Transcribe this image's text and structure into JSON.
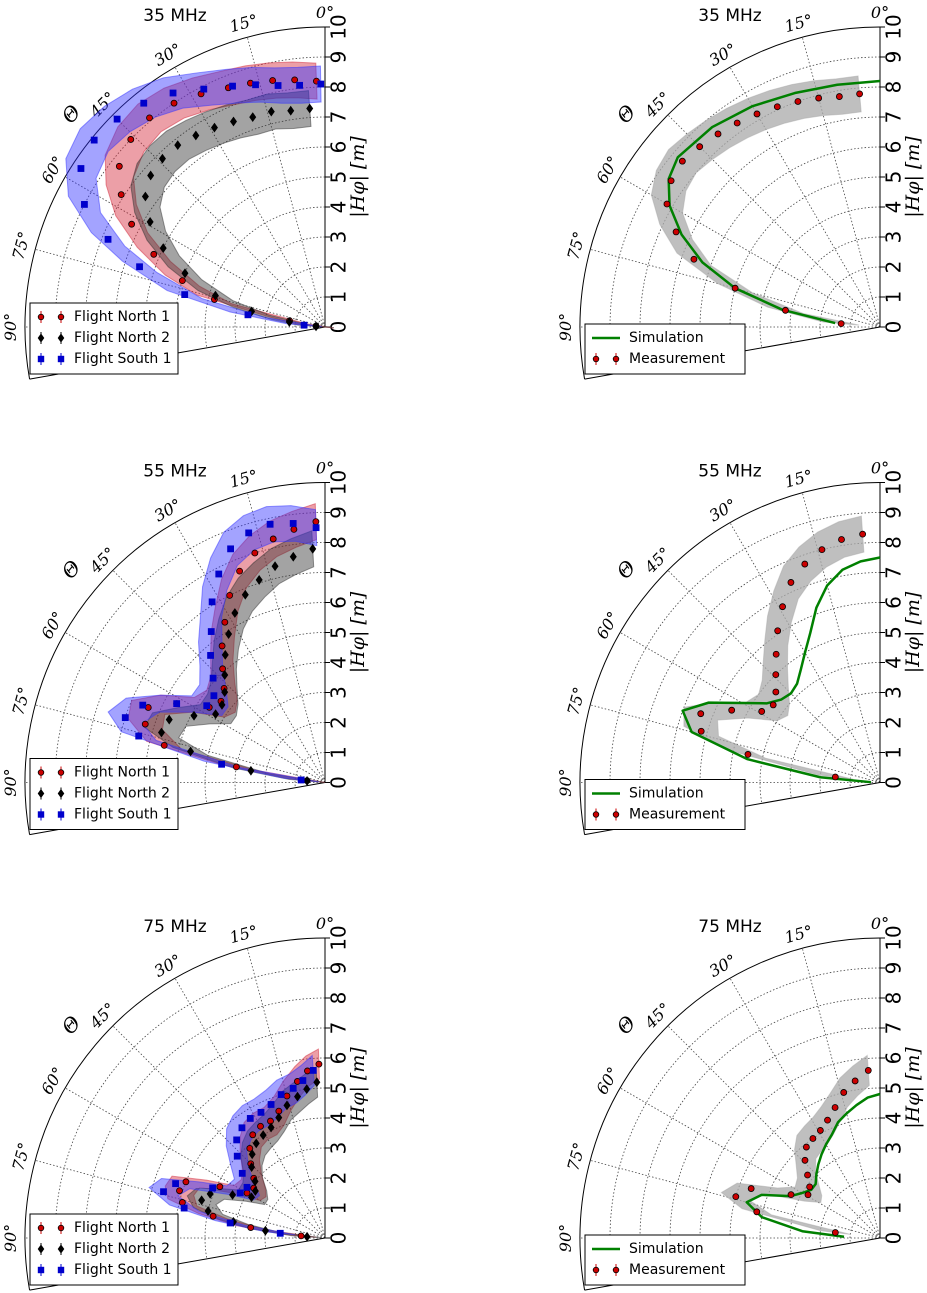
{
  "chart_data": [
    {
      "type": "polar",
      "title": "35 MHz",
      "theta_label": "Θ",
      "r_label": "|Hφ| [m]",
      "rlim": [
        0,
        10
      ],
      "rticks": [
        0,
        1,
        2,
        3,
        4,
        5,
        6,
        7,
        8,
        9,
        10
      ],
      "thetalim": [
        0,
        100
      ],
      "thetaticks": [
        {
          "value": 0,
          "label": "0°"
        },
        {
          "value": 15,
          "label": "15°"
        },
        {
          "value": 30,
          "label": "30°"
        },
        {
          "value": 45,
          "label": "45°"
        },
        {
          "value": 60,
          "label": "60°"
        },
        {
          "value": 75,
          "label": "75°"
        },
        {
          "value": 90,
          "label": "90°"
        }
      ],
      "grid": true,
      "legend": "lower left",
      "series": [
        {
          "name": "Flight North 1",
          "style": "points",
          "marker": "circle",
          "color": "#cc0000",
          "band_color": "#d42a3c",
          "error": 0.6,
          "theta": [
            2,
            7,
            12,
            17,
            22,
            28,
            34,
            40,
            46,
            52,
            57,
            62,
            67,
            72,
            76,
            80,
            84
          ],
          "values": [
            8.2,
            8.3,
            8.4,
            8.5,
            8.6,
            8.8,
            9.0,
            9.1,
            9.0,
            8.7,
            8.1,
            7.3,
            6.2,
            5.0,
            3.8,
            1.2,
            0.3
          ]
        },
        {
          "name": "Flight North 2",
          "style": "points",
          "marker": "diamond",
          "color": "#000000",
          "band_color": "#333333",
          "error": 0.6,
          "theta": [
            4,
            9,
            14,
            19,
            24,
            29,
            34,
            39,
            44,
            49,
            54,
            59,
            64,
            69,
            74,
            78,
            82,
            86
          ],
          "values": [
            7.3,
            7.3,
            7.4,
            7.4,
            7.5,
            7.6,
            7.7,
            7.8,
            7.8,
            7.7,
            7.4,
            6.8,
            6.0,
            5.0,
            3.8,
            2.5,
            1.2,
            0.3
          ]
        },
        {
          "name": "Flight South 1",
          "style": "points",
          "marker": "square",
          "color": "#0000cc",
          "band_color": "#3333ff",
          "error": 0.6,
          "theta": [
            1,
            6,
            11,
            16,
            21,
            27,
            33,
            39,
            45,
            51,
            57,
            63,
            68,
            72,
            77,
            81,
            85
          ],
          "values": [
            8.1,
            8.1,
            8.2,
            8.4,
            8.6,
            8.9,
            9.3,
            9.6,
            9.8,
            9.9,
            9.7,
            9.0,
            7.8,
            6.5,
            4.8,
            2.6,
            0.7
          ]
        }
      ]
    },
    {
      "type": "polar",
      "title": "35 MHz",
      "theta_label": "Θ",
      "r_label": "|Hφ| [m]",
      "rlim": [
        0,
        10
      ],
      "rticks": [
        0,
        1,
        2,
        3,
        4,
        5,
        6,
        7,
        8,
        9,
        10
      ],
      "thetalim": [
        0,
        100
      ],
      "thetaticks": [
        {
          "value": 0,
          "label": "0°"
        },
        {
          "value": 15,
          "label": "15°"
        },
        {
          "value": 30,
          "label": "30°"
        },
        {
          "value": 45,
          "label": "45°"
        },
        {
          "value": 60,
          "label": "60°"
        },
        {
          "value": 75,
          "label": "75°"
        },
        {
          "value": 90,
          "label": "90°"
        }
      ],
      "grid": true,
      "legend": "lower left",
      "series": [
        {
          "name": "Simulation",
          "style": "line",
          "color": "#008000",
          "theta": [
            0,
            10,
            20,
            30,
            40,
            50,
            55,
            60,
            65,
            70,
            75,
            80,
            85
          ],
          "values": [
            8.2,
            8.2,
            8.3,
            8.5,
            8.7,
            8.8,
            8.6,
            8.1,
            7.3,
            6.3,
            5.0,
            3.3,
            1.5
          ]
        },
        {
          "name": "Measurement",
          "style": "points",
          "marker": "circle",
          "color": "#cc0000",
          "band_color": "#aaaaaa",
          "error": 0.6,
          "theta": [
            5,
            10,
            15,
            20,
            25,
            30,
            35,
            40,
            45,
            50,
            55,
            60,
            65,
            70,
            75,
            80,
            85
          ],
          "values": [
            7.8,
            7.8,
            7.9,
            8.0,
            8.1,
            8.2,
            8.3,
            8.4,
            8.5,
            8.6,
            8.5,
            8.2,
            7.5,
            6.6,
            5.0,
            3.2,
            1.3
          ]
        }
      ]
    },
    {
      "type": "polar",
      "title": "55 MHz",
      "theta_label": "Θ",
      "r_label": "|Hφ| [m]",
      "rlim": [
        0,
        10
      ],
      "rticks": [
        0,
        1,
        2,
        3,
        4,
        5,
        6,
        7,
        8,
        9,
        10
      ],
      "thetalim": [
        0,
        100
      ],
      "thetaticks": [
        {
          "value": 0,
          "label": "0°"
        },
        {
          "value": 15,
          "label": "15°"
        },
        {
          "value": 30,
          "label": "30°"
        },
        {
          "value": 45,
          "label": "45°"
        },
        {
          "value": 60,
          "label": "60°"
        },
        {
          "value": 75,
          "label": "75°"
        },
        {
          "value": 90,
          "label": "90°"
        }
      ],
      "grid": true,
      "legend": "lower left",
      "series": [
        {
          "name": "Flight North 1",
          "style": "points",
          "marker": "circle",
          "color": "#cc0000",
          "band_color": "#d42a3c",
          "error": 0.6,
          "theta": [
            2,
            7,
            12,
            17,
            22,
            27,
            32,
            37,
            42,
            47,
            52,
            57,
            62,
            67,
            72,
            77,
            80,
            84
          ],
          "values": [
            8.7,
            8.5,
            8.3,
            8.0,
            7.6,
            7.0,
            6.3,
            5.7,
            5.1,
            4.6,
            4.4,
            4.6,
            5.6,
            6.4,
            6.3,
            5.5,
            3.0,
            0.6
          ]
        },
        {
          "name": "Flight North 2",
          "style": "points",
          "marker": "diamond",
          "color": "#000000",
          "band_color": "#333333",
          "error": 0.6,
          "theta": [
            3,
            8,
            13,
            18,
            23,
            28,
            33,
            38,
            43,
            48,
            53,
            58,
            63,
            68,
            73,
            77,
            81,
            85
          ],
          "values": [
            7.8,
            7.6,
            7.4,
            7.1,
            6.8,
            6.4,
            5.9,
            5.4,
            4.9,
            4.5,
            4.3,
            4.3,
            4.9,
            5.6,
            5.7,
            4.6,
            2.5,
            0.6
          ]
        },
        {
          "name": "Flight South 1",
          "style": "points",
          "marker": "square",
          "color": "#0000cc",
          "band_color": "#3333ff",
          "error": 0.6,
          "theta": [
            2,
            7,
            12,
            17,
            22,
            27,
            32,
            37,
            42,
            47,
            52,
            57,
            62,
            67,
            72,
            76,
            80,
            84
          ],
          "values": [
            8.5,
            8.7,
            8.8,
            8.7,
            8.4,
            7.8,
            7.1,
            6.3,
            5.7,
            5.1,
            4.7,
            4.7,
            5.6,
            6.6,
            7.0,
            6.4,
            3.5,
            0.8
          ]
        }
      ]
    },
    {
      "type": "polar",
      "title": "55 MHz",
      "theta_label": "Θ",
      "r_label": "|Hφ| [m]",
      "rlim": [
        0,
        10
      ],
      "rticks": [
        0,
        1,
        2,
        3,
        4,
        5,
        6,
        7,
        8,
        9,
        10
      ],
      "thetalim": [
        0,
        100
      ],
      "thetaticks": [
        {
          "value": 0,
          "label": "0°"
        },
        {
          "value": 15,
          "label": "15°"
        },
        {
          "value": 30,
          "label": "30°"
        },
        {
          "value": 45,
          "label": "45°"
        },
        {
          "value": 60,
          "label": "60°"
        },
        {
          "value": 75,
          "label": "75°"
        },
        {
          "value": 90,
          "label": "90°"
        }
      ],
      "grid": true,
      "legend": "lower left",
      "series": [
        {
          "name": "Simulation",
          "style": "line",
          "color": "#008000",
          "theta": [
            0,
            5,
            10,
            15,
            20,
            25,
            30,
            35,
            40,
            45,
            50,
            55,
            60,
            65,
            70,
            75,
            80,
            85,
            88
          ],
          "values": [
            7.5,
            7.4,
            7.2,
            6.8,
            6.2,
            5.5,
            5.0,
            4.6,
            4.3,
            4.2,
            4.3,
            4.6,
            5.3,
            6.3,
            7.0,
            6.5,
            4.5,
            2.0,
            0.3
          ]
        },
        {
          "name": "Measurement",
          "style": "points",
          "marker": "circle",
          "color": "#cc0000",
          "band_color": "#aaaaaa",
          "error": 0.6,
          "theta": [
            4,
            9,
            14,
            19,
            24,
            29,
            34,
            39,
            44,
            49,
            54,
            59,
            64,
            69,
            74,
            78,
            83
          ],
          "values": [
            8.3,
            8.2,
            8.0,
            7.7,
            7.3,
            6.7,
            6.1,
            5.5,
            5.0,
            4.6,
            4.4,
            4.6,
            5.5,
            6.4,
            6.2,
            4.5,
            1.5
          ]
        }
      ]
    },
    {
      "type": "polar",
      "title": "75 MHz",
      "theta_label": "Θ",
      "r_label": "|Hφ| [m]",
      "rlim": [
        0,
        10
      ],
      "rticks": [
        0,
        1,
        2,
        3,
        4,
        5,
        6,
        7,
        8,
        9,
        10
      ],
      "thetalim": [
        0,
        100
      ],
      "thetaticks": [
        {
          "value": 0,
          "label": "0°"
        },
        {
          "value": 15,
          "label": "15°"
        },
        {
          "value": 30,
          "label": "30°"
        },
        {
          "value": 45,
          "label": "45°"
        },
        {
          "value": 60,
          "label": "60°"
        },
        {
          "value": 75,
          "label": "75°"
        },
        {
          "value": 90,
          "label": "90°"
        }
      ],
      "grid": true,
      "legend": "lower left",
      "series": [
        {
          "name": "Flight North 1",
          "style": "points",
          "marker": "circle",
          "color": "#cc0000",
          "band_color": "#d42a3c",
          "error": 0.5,
          "theta": [
            2,
            6,
            10,
            15,
            20,
            25,
            30,
            35,
            40,
            45,
            50,
            55,
            60,
            64,
            68,
            72,
            76,
            79,
            82,
            85
          ],
          "values": [
            5.8,
            5.6,
            5.3,
            4.9,
            4.5,
            4.3,
            4.3,
            4.2,
            3.9,
            3.5,
            3.1,
            2.9,
            3.0,
            3.9,
            5.0,
            5.1,
            4.9,
            3.8,
            2.5,
            0.8
          ]
        },
        {
          "name": "Flight North 2",
          "style": "points",
          "marker": "diamond",
          "color": "#000000",
          "band_color": "#333333",
          "error": 0.5,
          "theta": [
            3,
            7,
            11,
            16,
            21,
            26,
            31,
            36,
            41,
            46,
            51,
            56,
            61,
            65,
            69,
            73,
            77,
            80,
            83,
            86
          ],
          "values": [
            5.2,
            5.0,
            4.8,
            4.6,
            4.3,
            4.1,
            4.0,
            3.9,
            3.7,
            3.4,
            3.0,
            2.8,
            2.8,
            3.4,
            4.1,
            4.3,
            4.0,
            3.1,
            2.0,
            0.6
          ]
        },
        {
          "name": "Flight South 1",
          "style": "points",
          "marker": "square",
          "color": "#0000cc",
          "band_color": "#3333ff",
          "error": 0.5,
          "theta": [
            4,
            8,
            12,
            17,
            22,
            27,
            32,
            37,
            42,
            47,
            52,
            57,
            62,
            66,
            70,
            74,
            78,
            81,
            84
          ],
          "values": [
            5.6,
            5.3,
            5.1,
            5.0,
            4.8,
            4.7,
            4.7,
            4.6,
            4.4,
            4.0,
            3.5,
            3.1,
            3.2,
            4.1,
            5.3,
            5.6,
            4.8,
            3.2,
            1.5
          ]
        }
      ]
    },
    {
      "type": "polar",
      "title": "75 MHz",
      "theta_label": "Θ",
      "r_label": "|Hφ| [m]",
      "rlim": [
        0,
        10
      ],
      "rticks": [
        0,
        1,
        2,
        3,
        4,
        5,
        6,
        7,
        8,
        9,
        10
      ],
      "thetalim": [
        0,
        100
      ],
      "thetaticks": [
        {
          "value": 0,
          "label": "0°"
        },
        {
          "value": 15,
          "label": "15°"
        },
        {
          "value": 30,
          "label": "30°"
        },
        {
          "value": 45,
          "label": "45°"
        },
        {
          "value": 60,
          "label": "60°"
        },
        {
          "value": 75,
          "label": "75°"
        },
        {
          "value": 90,
          "label": "90°"
        }
      ],
      "grid": true,
      "legend": "lower left",
      "series": [
        {
          "name": "Simulation",
          "style": "line",
          "color": "#008000",
          "theta": [
            0,
            5,
            10,
            15,
            20,
            25,
            30,
            35,
            40,
            45,
            50,
            55,
            60,
            65,
            70,
            75,
            80,
            85,
            88
          ],
          "values": [
            4.8,
            4.7,
            4.5,
            4.3,
            4.1,
            3.8,
            3.6,
            3.4,
            3.2,
            3.0,
            2.8,
            2.8,
            3.0,
            3.3,
            4.2,
            4.6,
            4.0,
            2.6,
            1.2
          ]
        },
        {
          "name": "Measurement",
          "style": "points",
          "marker": "circle",
          "color": "#cc0000",
          "band_color": "#aaaaaa",
          "error": 0.5,
          "theta": [
            4,
            9,
            14,
            19,
            24,
            29,
            34,
            39,
            44,
            49,
            54,
            59,
            64,
            69,
            74,
            78,
            83
          ],
          "values": [
            5.6,
            5.3,
            5.0,
            4.6,
            4.3,
            4.1,
            4.0,
            3.9,
            3.6,
            3.2,
            2.9,
            2.8,
            3.3,
            4.6,
            5.0,
            4.2,
            1.5
          ]
        }
      ]
    }
  ]
}
